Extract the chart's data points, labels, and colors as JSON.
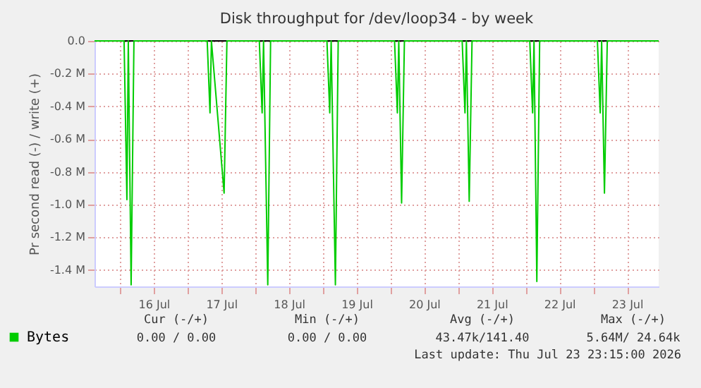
{
  "chart_data": {
    "type": "line",
    "title": "Disk throughput for /dev/loop34 - by week",
    "ylabel": "Pr second read (-) / write (+)",
    "series": [
      {
        "name": "Bytes",
        "color": "#00cc00",
        "x": [
          "2026-07-15T15:00",
          "2026-07-16T01:30",
          "2026-07-16T02:30",
          "2026-07-16T03:00",
          "2026-07-16T04:00",
          "2026-07-16T05:00",
          "2026-07-17T07:00",
          "2026-07-17T08:00",
          "2026-07-17T08:30",
          "2026-07-17T13:00",
          "2026-07-17T14:00",
          "2026-07-18T01:30",
          "2026-07-18T02:30",
          "2026-07-18T03:00",
          "2026-07-18T04:30",
          "2026-07-18T05:30",
          "2026-07-19T01:30",
          "2026-07-19T02:30",
          "2026-07-19T03:00",
          "2026-07-19T04:30",
          "2026-07-19T05:30",
          "2026-07-20T01:30",
          "2026-07-20T02:30",
          "2026-07-20T03:00",
          "2026-07-20T04:00",
          "2026-07-20T05:00",
          "2026-07-21T01:30",
          "2026-07-21T02:30",
          "2026-07-21T03:00",
          "2026-07-21T04:00",
          "2026-07-21T05:00",
          "2026-07-22T01:30",
          "2026-07-22T02:30",
          "2026-07-22T03:00",
          "2026-07-22T04:00",
          "2026-07-22T05:00",
          "2026-07-23T01:30",
          "2026-07-23T02:30",
          "2026-07-23T03:00",
          "2026-07-23T04:00",
          "2026-07-23T05:00",
          "2026-07-23T23:15"
        ],
        "values": [
          0,
          0,
          -0.97,
          0,
          -1.49,
          0,
          0,
          -0.44,
          0,
          -0.93,
          0,
          0,
          -0.44,
          0,
          -1.49,
          0,
          0,
          -0.44,
          0,
          -1.49,
          0,
          0,
          -0.44,
          0,
          -0.99,
          0,
          0,
          -0.44,
          0,
          -0.98,
          0,
          0,
          -0.44,
          0,
          -1.47,
          0,
          0,
          -0.44,
          0,
          -0.93,
          0,
          0
        ]
      }
    ],
    "xlim": [
      "2026-07-15T15:00",
      "2026-07-23T23:15"
    ],
    "xticks": [
      {
        "value": "2026-07-16T00:00",
        "label": null
      },
      {
        "value": "2026-07-16T12:00",
        "label": "16 Jul"
      },
      {
        "value": "2026-07-17T00:00",
        "label": null
      },
      {
        "value": "2026-07-17T12:00",
        "label": "17 Jul"
      },
      {
        "value": "2026-07-18T00:00",
        "label": null
      },
      {
        "value": "2026-07-18T12:00",
        "label": "18 Jul"
      },
      {
        "value": "2026-07-19T00:00",
        "label": null
      },
      {
        "value": "2026-07-19T12:00",
        "label": "19 Jul"
      },
      {
        "value": "2026-07-20T00:00",
        "label": null
      },
      {
        "value": "2026-07-20T12:00",
        "label": "20 Jul"
      },
      {
        "value": "2026-07-21T00:00",
        "label": null
      },
      {
        "value": "2026-07-21T12:00",
        "label": "21 Jul"
      },
      {
        "value": "2026-07-22T00:00",
        "label": null
      },
      {
        "value": "2026-07-22T12:00",
        "label": "22 Jul"
      },
      {
        "value": "2026-07-23T00:00",
        "label": null
      },
      {
        "value": "2026-07-23T12:00",
        "label": "23 Jul"
      }
    ],
    "ylim": [
      -1.5,
      0
    ],
    "yticks": [
      {
        "value": 0,
        "label": "0.0"
      },
      {
        "value": -0.2,
        "label": "-0.2 M"
      },
      {
        "value": -0.4,
        "label": "-0.4 M"
      },
      {
        "value": -0.6,
        "label": "-0.6 M"
      },
      {
        "value": -0.8,
        "label": "-0.8 M"
      },
      {
        "value": -1.0,
        "label": "-1.0 M"
      },
      {
        "value": -1.2,
        "label": "-1.2 M"
      },
      {
        "value": -1.4,
        "label": "-1.4 M"
      }
    ],
    "ref_lines": [
      {
        "axis": "y",
        "value": 0,
        "color": "#000000"
      }
    ],
    "grid": true,
    "legend": "bottom left",
    "marker": "none",
    "line_style": "solid",
    "annotations": [
      "Cur (-/+)",
      "Min (-/+)",
      "Avg (-/+)",
      "Max (-/+)",
      "0.00 /  0.00",
      "0.00 /  0.00",
      "43.47k/141.40",
      "5.64M/ 24.64k",
      "Last update: Thu Jul 23 23:15:00 2026"
    ]
  }
}
